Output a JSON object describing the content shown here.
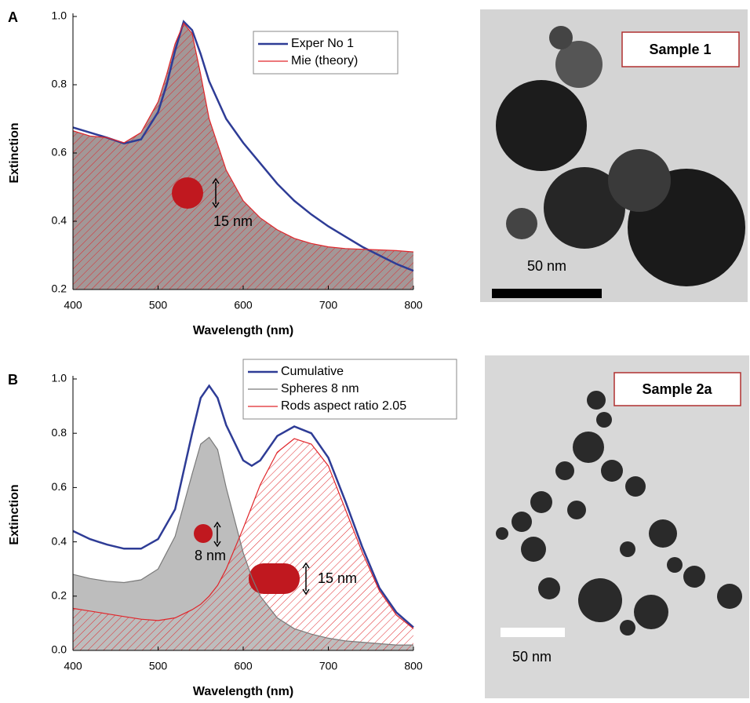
{
  "chart_data": [
    {
      "type": "line",
      "panel_label": "A",
      "xlabel": "Wavelength (nm)",
      "ylabel": "Extinction",
      "x": [
        400,
        420,
        440,
        460,
        480,
        500,
        510,
        520,
        530,
        540,
        550,
        560,
        580,
        600,
        620,
        640,
        660,
        680,
        700,
        720,
        740,
        760,
        780,
        800
      ],
      "series": [
        {
          "name": "Exper No 1",
          "color": "#2e3c96",
          "values": [
            0.675,
            0.66,
            0.645,
            0.628,
            0.64,
            0.72,
            0.8,
            0.9,
            0.985,
            0.96,
            0.89,
            0.81,
            0.7,
            0.63,
            0.57,
            0.51,
            0.46,
            0.42,
            0.385,
            0.355,
            0.325,
            0.3,
            0.275,
            0.255
          ]
        },
        {
          "name": "Mie (theory)",
          "color": "#e0262b",
          "fill": "#a39797",
          "hatch": true,
          "values": [
            0.665,
            0.65,
            0.645,
            0.63,
            0.66,
            0.75,
            0.83,
            0.92,
            0.98,
            0.95,
            0.83,
            0.7,
            0.55,
            0.46,
            0.41,
            0.375,
            0.35,
            0.335,
            0.325,
            0.32,
            0.318,
            0.316,
            0.314,
            0.31
          ]
        }
      ],
      "annotations": [
        "15 nm"
      ],
      "xlim": [
        400,
        800
      ],
      "xticks": [
        400,
        500,
        600,
        700,
        800
      ],
      "ylim": [
        0.2,
        1
      ],
      "yticks": [
        0.2,
        0.4,
        0.6,
        0.8,
        {
          "value": 1,
          "label": "1.0"
        }
      ],
      "legend": "upper right"
    },
    {
      "type": "line",
      "panel_label": "B",
      "xlabel": "Wavelength (nm)",
      "ylabel": "Extinction",
      "x": [
        400,
        420,
        440,
        460,
        480,
        500,
        520,
        540,
        550,
        560,
        570,
        580,
        600,
        610,
        620,
        640,
        660,
        680,
        700,
        720,
        740,
        760,
        780,
        800
      ],
      "series": [
        {
          "name": "Cumulative",
          "color": "#2e3c96",
          "values": [
            0.44,
            0.41,
            0.39,
            0.375,
            0.375,
            0.41,
            0.52,
            0.8,
            0.93,
            0.975,
            0.93,
            0.83,
            0.7,
            0.68,
            0.7,
            0.79,
            0.825,
            0.8,
            0.71,
            0.55,
            0.38,
            0.23,
            0.14,
            0.085
          ]
        },
        {
          "name": "Spheres 8 nm",
          "color": "#7a7a7a",
          "fill": "#bdbdbd",
          "hatch": false,
          "values": [
            0.28,
            0.265,
            0.255,
            0.25,
            0.26,
            0.3,
            0.42,
            0.65,
            0.76,
            0.785,
            0.74,
            0.6,
            0.36,
            0.27,
            0.2,
            0.12,
            0.08,
            0.06,
            0.045,
            0.035,
            0.03,
            0.025,
            0.02,
            0.02
          ]
        },
        {
          "name": "Rods aspect ratio 2.05",
          "color": "#e0262b",
          "hatch": true,
          "values": [
            0.155,
            0.145,
            0.135,
            0.125,
            0.115,
            0.11,
            0.12,
            0.15,
            0.17,
            0.2,
            0.24,
            0.3,
            0.45,
            0.53,
            0.61,
            0.73,
            0.78,
            0.76,
            0.68,
            0.52,
            0.36,
            0.22,
            0.13,
            0.08
          ]
        }
      ],
      "annotations": [
        "8 nm",
        "15 nm"
      ],
      "xlim": [
        400,
        800
      ],
      "xticks": [
        400,
        500,
        600,
        700,
        800
      ],
      "ylim": [
        0,
        1
      ],
      "yticks": [
        {
          "value": 0,
          "label": "0.0"
        },
        0.2,
        0.4,
        0.6,
        0.8,
        {
          "value": 1,
          "label": "1.0"
        }
      ],
      "legend": "upper right"
    }
  ],
  "images": [
    {
      "label": "Sample 1",
      "scale_bar": "50 nm"
    },
    {
      "label": "Sample 2a",
      "scale_bar": "50 nm"
    }
  ]
}
